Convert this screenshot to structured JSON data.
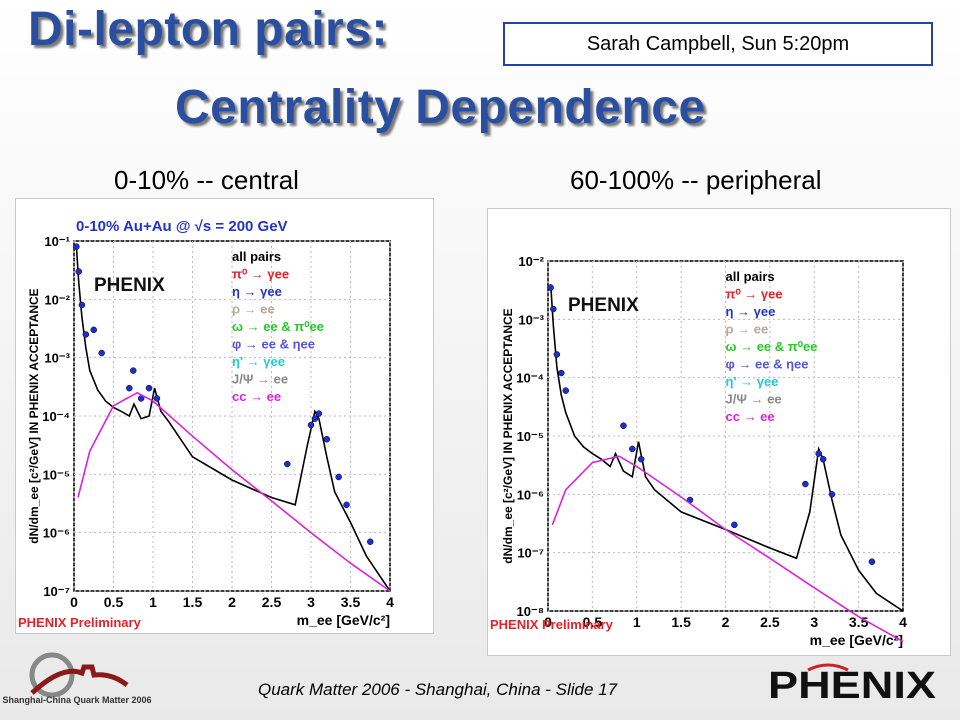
{
  "slide": {
    "title_line1": "Di-lepton pairs:",
    "title_line2": "Centrality Dependence",
    "speaker": "Sarah Campbell, Sun 5:20pm",
    "footer": "Quark Matter 2006 - Shanghai, China - Slide  17",
    "conference_logo_text": "Shanghai-China Quark Matter 2006",
    "phenix_logo_text": "PHENIX"
  },
  "chart_data": [
    {
      "type": "line",
      "subtitle": "0-10% -- central",
      "title": "0-10% Au+Au @ √s = 200 GeV",
      "xlabel": "m_ee [GeV/c²]",
      "ylabel": "dN/dm_ee [c²/GeV] IN PHENIX ACCEPTANCE",
      "y_scale": "log",
      "xlim": [
        0,
        4
      ],
      "ylim": [
        1e-07,
        0.1
      ],
      "x_ticks": [
        "0",
        "0.5",
        "1",
        "1.5",
        "2",
        "2.5",
        "3",
        "3.5",
        "4"
      ],
      "y_ticks": [
        "10⁻⁷",
        "10⁻⁶",
        "10⁻⁵",
        "10⁻⁴",
        "10⁻³",
        "10⁻²",
        "10⁻¹"
      ],
      "watermark": "PHENIX Preliminary",
      "logo": "PHENIX",
      "legend_placement": "top-right",
      "legend": [
        {
          "label": "all pairs",
          "color": "#000000"
        },
        {
          "label": "π⁰ → γee",
          "color": "#e8202a"
        },
        {
          "label": "η → γee",
          "color": "#2233cc"
        },
        {
          "label": "ρ → ee",
          "color": "#b8a89a"
        },
        {
          "label": "ω → ee & π⁰ee",
          "color": "#22cc22"
        },
        {
          "label": "φ → ee & ηee",
          "color": "#5555dd"
        },
        {
          "label": "η' → γee",
          "color": "#22cccc"
        },
        {
          "label": "J/Ψ → ee",
          "color": "#8a8a8a"
        },
        {
          "label": "cc → ee",
          "color": "#dd22dd"
        }
      ],
      "series": [
        {
          "name": "all pairs",
          "x": [
            0.03,
            0.06,
            0.1,
            0.15,
            0.2,
            0.3,
            0.4,
            0.5,
            0.6,
            0.7,
            0.76,
            0.85,
            0.95,
            1.02,
            1.1,
            1.2,
            1.5,
            2.0,
            2.5,
            2.8,
            2.95,
            3.05,
            3.1,
            3.2,
            3.3,
            3.5,
            3.7,
            4.0
          ],
          "y": [
            0.08,
            0.02,
            0.005,
            0.0015,
            0.0006,
            0.00028,
            0.00018,
            0.00014,
            0.00012,
            0.0001,
            0.00016,
            9e-05,
            0.0001,
            0.0003,
            0.00012,
            8e-05,
            2e-05,
            8e-06,
            4e-06,
            3e-06,
            3e-05,
            0.00012,
            9e-05,
            2e-05,
            5e-06,
            1.5e-06,
            4e-07,
            1e-07
          ]
        },
        {
          "name": "data",
          "points": [
            [
              0.03,
              0.08
            ],
            [
              0.06,
              0.03
            ],
            [
              0.1,
              0.008
            ],
            [
              0.15,
              0.0025
            ],
            [
              0.25,
              0.003
            ],
            [
              0.35,
              0.0012
            ],
            [
              0.7,
              0.0003
            ],
            [
              0.75,
              0.0006
            ],
            [
              0.85,
              0.0002
            ],
            [
              0.95,
              0.0003
            ],
            [
              1.05,
              0.0002
            ],
            [
              2.7,
              1.5e-05
            ],
            [
              3.0,
              7e-05
            ],
            [
              3.05,
              9e-05
            ],
            [
              3.1,
              0.00011
            ],
            [
              3.2,
              4e-05
            ],
            [
              3.35,
              9e-06
            ],
            [
              3.45,
              3e-06
            ],
            [
              3.75,
              7e-07
            ]
          ]
        },
        {
          "name": "cc → ee",
          "x": [
            0.05,
            0.2,
            0.5,
            0.8,
            1.0,
            1.5,
            2.0,
            2.5,
            3.0,
            3.5,
            4.0
          ],
          "y": [
            4e-06,
            2.5e-05,
            0.00015,
            0.00025,
            0.00018,
            4.5e-05,
            1.2e-05,
            3.5e-06,
            1e-06,
            3e-07,
            1e-07
          ]
        }
      ]
    },
    {
      "type": "line",
      "subtitle": "60-100% -- peripheral",
      "xlabel": "m_ee [GeV/c²]",
      "ylabel": "dN/dm_ee [c²/GeV] IN PHENIX ACCEPTANCE",
      "y_scale": "log",
      "xlim": [
        0,
        4
      ],
      "ylim": [
        1e-08,
        0.01
      ],
      "x_ticks": [
        "0",
        "0.5",
        "1",
        "1.5",
        "2",
        "2.5",
        "3",
        "3.5",
        "4"
      ],
      "y_ticks": [
        "10⁻⁸",
        "10⁻⁷",
        "10⁻⁶",
        "10⁻⁵",
        "10⁻⁴",
        "10⁻³",
        "10⁻²"
      ],
      "watermark": "PHENIX Preliminary",
      "logo": "PHENIX",
      "legend_placement": "top-right",
      "legend": [
        {
          "label": "all pairs",
          "color": "#000000"
        },
        {
          "label": "π⁰ → γee",
          "color": "#e8202a"
        },
        {
          "label": "η → γee",
          "color": "#2233cc"
        },
        {
          "label": "ρ → ee",
          "color": "#b8a89a"
        },
        {
          "label": "ω → ee & π⁰ee",
          "color": "#22cc22"
        },
        {
          "label": "φ → ee & ηee",
          "color": "#5555dd"
        },
        {
          "label": "η' → γee",
          "color": "#22cccc"
        },
        {
          "label": "J/Ψ → ee",
          "color": "#8a8a8a"
        },
        {
          "label": "cc → ee",
          "color": "#dd22dd"
        }
      ],
      "series": [
        {
          "name": "all pairs",
          "x": [
            0.03,
            0.06,
            0.1,
            0.15,
            0.2,
            0.3,
            0.4,
            0.5,
            0.6,
            0.7,
            0.76,
            0.85,
            0.95,
            1.02,
            1.1,
            1.2,
            1.5,
            2.0,
            2.5,
            2.8,
            2.95,
            3.05,
            3.1,
            3.2,
            3.3,
            3.5,
            3.7,
            4.0
          ],
          "y": [
            0.004,
            0.0008,
            0.00015,
            5e-05,
            2.5e-05,
            1e-05,
            6.5e-06,
            5e-06,
            4e-06,
            3e-06,
            5e-06,
            2.5e-06,
            2e-06,
            8e-06,
            2e-06,
            1.2e-06,
            5e-07,
            2.5e-07,
            1.2e-07,
            8e-08,
            5e-07,
            6e-06,
            4e-06,
            8e-07,
            2e-07,
            5e-08,
            2e-08,
            1e-08
          ]
        },
        {
          "name": "data",
          "points": [
            [
              0.03,
              0.0035
            ],
            [
              0.06,
              0.0015
            ],
            [
              0.1,
              0.00025
            ],
            [
              0.15,
              0.00012
            ],
            [
              0.2,
              6e-05
            ],
            [
              0.85,
              1.5e-05
            ],
            [
              0.95,
              6e-06
            ],
            [
              1.05,
              4e-06
            ],
            [
              1.6,
              8e-07
            ],
            [
              2.1,
              3e-07
            ],
            [
              2.9,
              1.5e-06
            ],
            [
              3.05,
              5e-06
            ],
            [
              3.1,
              4e-06
            ],
            [
              3.2,
              1e-06
            ],
            [
              3.65,
              7e-08
            ]
          ]
        },
        {
          "name": "cc → ee",
          "x": [
            0.05,
            0.2,
            0.5,
            0.8,
            1.0,
            1.5,
            2.0,
            2.5,
            3.0,
            3.5,
            4.0
          ],
          "y": [
            3e-07,
            1.2e-06,
            3.5e-06,
            4.5e-06,
            3e-06,
            9e-07,
            2.5e-07,
            8e-08,
            2.5e-08,
            8e-09,
            3e-09
          ]
        }
      ]
    }
  ]
}
